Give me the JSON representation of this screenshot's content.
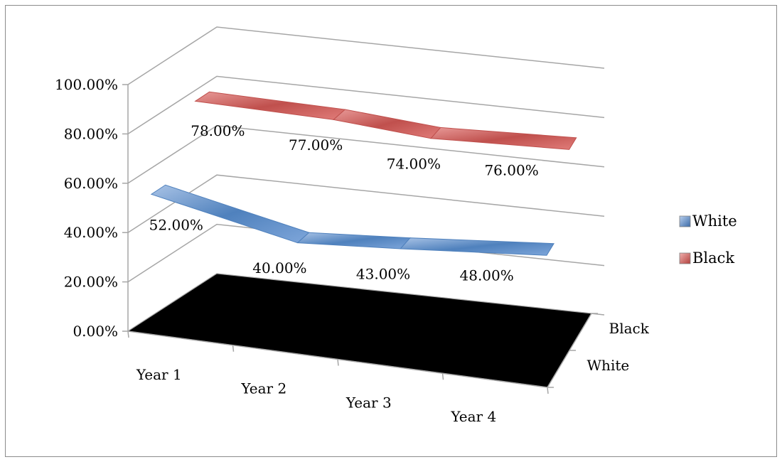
{
  "chart_data": {
    "type": "line",
    "view": "3d",
    "title": "",
    "categories": [
      "Year 1",
      "Year 2",
      "Year 3",
      "Year 4"
    ],
    "series": [
      {
        "name": "White",
        "values": [
          52,
          40,
          43,
          48
        ],
        "labels": [
          "52.00%",
          "40.00%",
          "43.00%",
          "48.00%"
        ],
        "color": "#4f81bd"
      },
      {
        "name": "Black",
        "values": [
          78,
          77,
          74,
          76
        ],
        "labels": [
          "78.00%",
          "77.00%",
          "74.00%",
          "76.00%"
        ],
        "color": "#c0504d"
      }
    ],
    "y_ticks": [
      "0.00%",
      "20.00%",
      "40.00%",
      "60.00%",
      "80.00%",
      "100.00%"
    ],
    "ylim": [
      0,
      100
    ],
    "y_unit": "%",
    "depth_axis": [
      "White",
      "Black"
    ],
    "floor_color": "#000000",
    "grid": true,
    "legend": "right"
  }
}
